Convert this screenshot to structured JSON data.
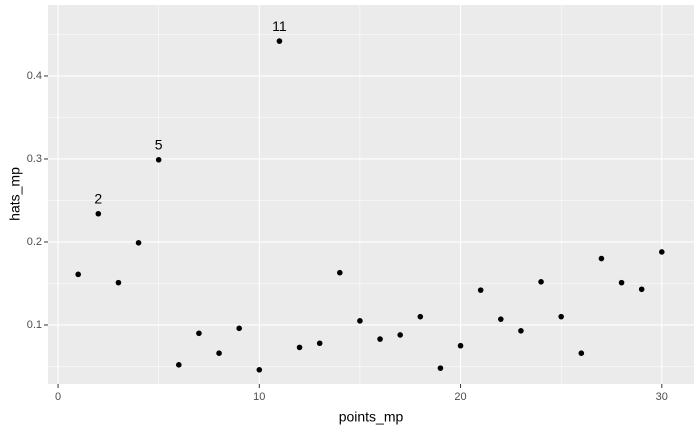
{
  "chart_data": {
    "type": "scatter",
    "x_label": "points_mp",
    "y_label": "hats_mp",
    "x": [
      1,
      2,
      3,
      4,
      5,
      6,
      7,
      8,
      9,
      10,
      11,
      12,
      13,
      14,
      15,
      16,
      17,
      18,
      19,
      20,
      21,
      22,
      23,
      24,
      25,
      26,
      27,
      28,
      29,
      30
    ],
    "values": [
      0.161,
      0.234,
      0.151,
      0.199,
      0.299,
      0.052,
      0.09,
      0.066,
      0.096,
      0.046,
      0.442,
      0.073,
      0.078,
      0.163,
      0.105,
      0.083,
      0.088,
      0.11,
      0.048,
      0.075,
      0.142,
      0.107,
      0.093,
      0.152,
      0.11,
      0.066,
      0.18,
      0.151,
      0.143,
      0.188
    ],
    "labels": [
      null,
      "2",
      null,
      null,
      "5",
      null,
      null,
      null,
      null,
      null,
      "11",
      null,
      null,
      null,
      null,
      null,
      null,
      null,
      null,
      null,
      null,
      null,
      null,
      null,
      null,
      null,
      null,
      null,
      null,
      null
    ],
    "color": "#000000",
    "xlim": [
      -0.5,
      31.6
    ],
    "ylim": [
      0.0289,
      0.4855
    ],
    "xticks": [
      0,
      10,
      20,
      30
    ],
    "yticks": [
      0.1,
      0.2,
      0.3,
      0.4
    ],
    "xminor": [
      5,
      15,
      25
    ],
    "yminor": [
      0.05,
      0.15,
      0.25,
      0.35,
      0.45
    ],
    "grid": true
  }
}
